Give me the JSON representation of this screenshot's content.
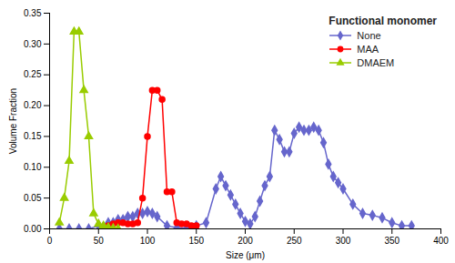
{
  "chart_data": {
    "type": "line",
    "title": "Functional monomer",
    "xlabel": "Size (μm)",
    "ylabel": "Volume Fraction",
    "xlim": [
      0,
      400
    ],
    "ylim": [
      0,
      0.35
    ],
    "xticks": [
      0,
      50,
      100,
      150,
      200,
      250,
      300,
      350,
      400
    ],
    "yticks": [
      {
        "value": 0,
        "label": "0.00"
      },
      0.05,
      {
        "value": 0.1,
        "label": "0.10"
      },
      0.15,
      {
        "value": 0.2,
        "label": "0.20"
      },
      0.25,
      {
        "value": 0.3,
        "label": "0.30"
      },
      0.35
    ],
    "legend": "upper right",
    "series": [
      {
        "name": "None",
        "color": "#6666cc",
        "marker": "diamond",
        "x": [
          10,
          20,
          30,
          40,
          50,
          60,
          65,
          70,
          75,
          80,
          85,
          90,
          95,
          100,
          105,
          110,
          120,
          130,
          140,
          150,
          160,
          170,
          175,
          180,
          185,
          190,
          195,
          200,
          205,
          210,
          215,
          220,
          225,
          230,
          235,
          240,
          245,
          250,
          255,
          260,
          265,
          270,
          275,
          280,
          285,
          290,
          295,
          300,
          310,
          320,
          330,
          340,
          350,
          360,
          370
        ],
        "values": [
          0,
          0,
          0,
          0,
          0.005,
          0.01,
          0.01,
          0.015,
          0.015,
          0.02,
          0.02,
          0.025,
          0.025,
          0.028,
          0.025,
          0.02,
          0.005,
          0.002,
          0.001,
          0.005,
          0.01,
          0.065,
          0.085,
          0.07,
          0.055,
          0.04,
          0.025,
          0.012,
          0.008,
          0.02,
          0.045,
          0.07,
          0.085,
          0.16,
          0.145,
          0.125,
          0.125,
          0.155,
          0.165,
          0.16,
          0.16,
          0.165,
          0.16,
          0.14,
          0.105,
          0.085,
          0.075,
          0.065,
          0.04,
          0.025,
          0.022,
          0.018,
          0.01,
          0.005,
          0.005
        ]
      },
      {
        "name": "MAA",
        "color": "#ff0000",
        "marker": "circle",
        "x": [
          60,
          65,
          70,
          75,
          80,
          85,
          90,
          95,
          100,
          105,
          110,
          115,
          120,
          125,
          130,
          135,
          140,
          145,
          150
        ],
        "values": [
          0.005,
          0.008,
          0.01,
          0.01,
          0.008,
          0.008,
          0.01,
          0.05,
          0.15,
          0.225,
          0.225,
          0.21,
          0.06,
          0.06,
          0.01,
          0.008,
          0.008,
          0.005,
          0.005
        ]
      },
      {
        "name": "DMAEM",
        "color": "#99cc00",
        "marker": "triangle",
        "x": [
          10,
          15,
          20,
          25,
          30,
          35,
          40,
          45,
          50,
          55,
          60,
          65,
          70
        ],
        "values": [
          0.01,
          0.05,
          0.11,
          0.32,
          0.32,
          0.225,
          0.15,
          0.025,
          0.008,
          0.005,
          0.002,
          0.001,
          0.0
        ]
      }
    ]
  }
}
